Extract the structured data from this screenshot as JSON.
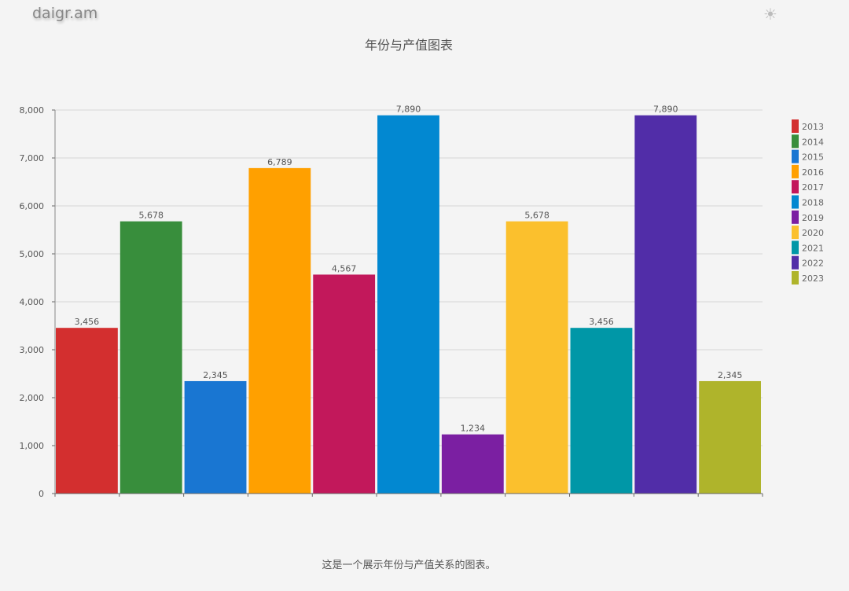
{
  "header": {
    "logo": "daigr.am",
    "theme_toggle_icon": "sun-icon"
  },
  "chart_data": {
    "type": "bar",
    "title": "年份与产值图表",
    "caption": "这是一个展示年份与产值关系的图表。",
    "categories": [
      "2013",
      "2014",
      "2015",
      "2016",
      "2017",
      "2018",
      "2019",
      "2020",
      "2021",
      "2022",
      "2023"
    ],
    "values": [
      3456,
      5678,
      2345,
      6789,
      4567,
      7890,
      1234,
      5678,
      3456,
      7890,
      2345
    ],
    "value_labels": [
      "3,456",
      "5,678",
      "2,345",
      "6,789",
      "4,567",
      "7,890",
      "1,234",
      "5,678",
      "3,456",
      "7,890",
      "2,345"
    ],
    "colors": [
      "#d32f2f",
      "#388e3c",
      "#1976d2",
      "#ffa000",
      "#c2185b",
      "#0288d1",
      "#7b1fa2",
      "#fbc02d",
      "#0097a7",
      "#512da8",
      "#afb42b"
    ],
    "yticks": [
      "0",
      "1,000",
      "2,000",
      "3,000",
      "4,000",
      "5,000",
      "6,000",
      "7,000",
      "8,000"
    ],
    "ylim": [
      0,
      8000
    ],
    "grid": true,
    "legend": "right"
  }
}
